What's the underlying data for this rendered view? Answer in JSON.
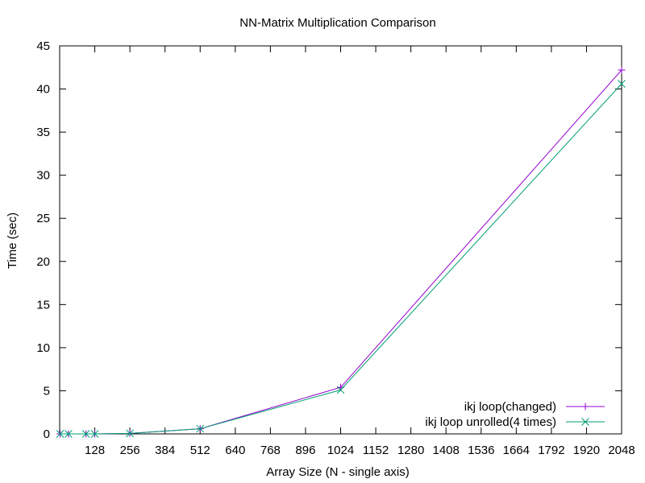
{
  "chart_data": {
    "type": "line",
    "title": "NN-Matrix Multiplication Comparison",
    "xlabel": "Array Size (N - single axis)",
    "ylabel": "Time (sec)",
    "xlim": [
      0,
      2048
    ],
    "ylim": [
      0,
      45
    ],
    "xticks": [
      128,
      256,
      384,
      512,
      640,
      768,
      896,
      1024,
      1152,
      1280,
      1408,
      1536,
      1664,
      1792,
      1920,
      2048
    ],
    "yticks": [
      0,
      5,
      10,
      15,
      20,
      25,
      30,
      35,
      40,
      45
    ],
    "grid": false,
    "legend_position": "bottom-right",
    "series": [
      {
        "name": "ikj loop(changed)",
        "color": "#9400d3",
        "marker": "plus",
        "x": [
          2,
          32,
          96,
          128,
          256,
          512,
          1024,
          2048
        ],
        "y": [
          0.0,
          0.0,
          0.0,
          0.0,
          0.06,
          0.6,
          5.4,
          42.2
        ]
      },
      {
        "name": "ikj loop unrolled(4 times)",
        "color": "#009e73",
        "marker": "cross",
        "x": [
          2,
          32,
          96,
          128,
          256,
          512,
          1024,
          2048
        ],
        "y": [
          0.0,
          0.0,
          0.0,
          0.0,
          0.06,
          0.6,
          5.1,
          40.6
        ]
      }
    ]
  }
}
